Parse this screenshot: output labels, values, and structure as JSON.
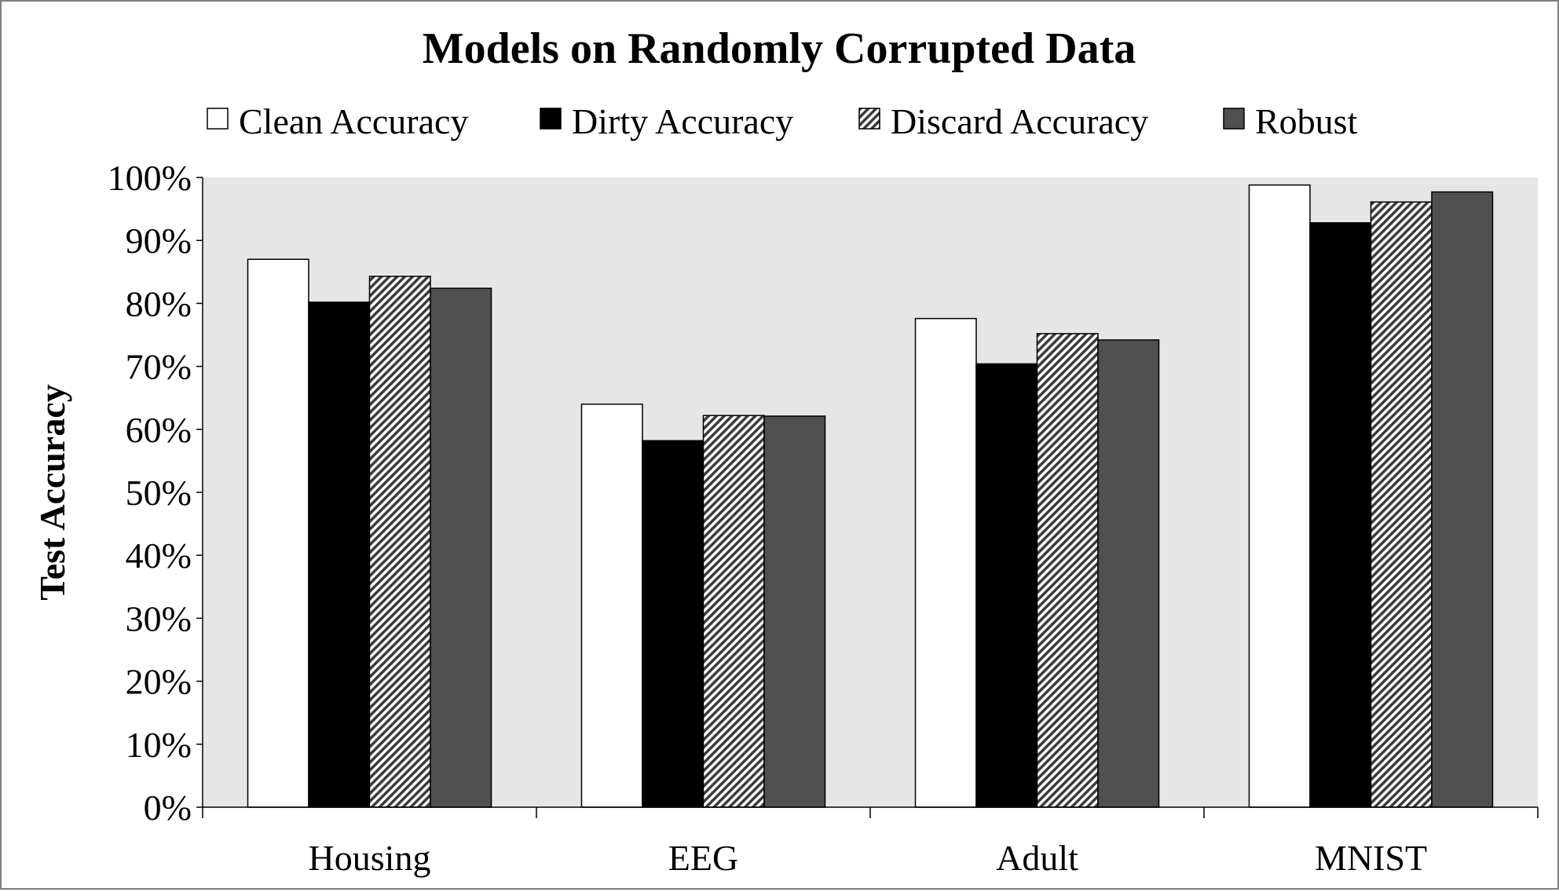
{
  "chart_data": {
    "type": "bar",
    "title": "Models on Randomly Corrupted Data",
    "xlabel": "",
    "ylabel": "Test Accuracy",
    "categories": [
      "Housing",
      "EEG",
      "Adult",
      "MNIST"
    ],
    "series": [
      {
        "name": "Clean Accuracy",
        "values": [
          0.87,
          0.64,
          0.776,
          0.988
        ],
        "color": "#ffffff",
        "pattern": "none"
      },
      {
        "name": "Dirty Accuracy",
        "values": [
          0.802,
          0.582,
          0.704,
          0.928
        ],
        "color": "#000000",
        "pattern": "none"
      },
      {
        "name": "Discard Accuracy",
        "values": [
          0.843,
          0.622,
          0.752,
          0.961
        ],
        "color": "#7f7f7f",
        "pattern": "diagonal-stripes"
      },
      {
        "name": "Robust",
        "values": [
          0.824,
          0.621,
          0.742,
          0.977
        ],
        "color": "#505050",
        "pattern": "none"
      }
    ],
    "ylim": [
      0,
      1
    ],
    "yticks": [
      {
        "value": 0,
        "label": "0%"
      },
      {
        "value": 0.1,
        "label": "10%"
      },
      {
        "value": 0.2,
        "label": "20%"
      },
      {
        "value": 0.3,
        "label": "30%"
      },
      {
        "value": 0.4,
        "label": "40%"
      },
      {
        "value": 0.5,
        "label": "50%"
      },
      {
        "value": 0.6,
        "label": "60%"
      },
      {
        "value": 0.7,
        "label": "70%"
      },
      {
        "value": 0.8,
        "label": "80%"
      },
      {
        "value": 0.9,
        "label": "90%"
      },
      {
        "value": 1,
        "label": "100%"
      }
    ],
    "grid": false,
    "plot_background": "#e6e6e6",
    "legend_position": "top"
  }
}
